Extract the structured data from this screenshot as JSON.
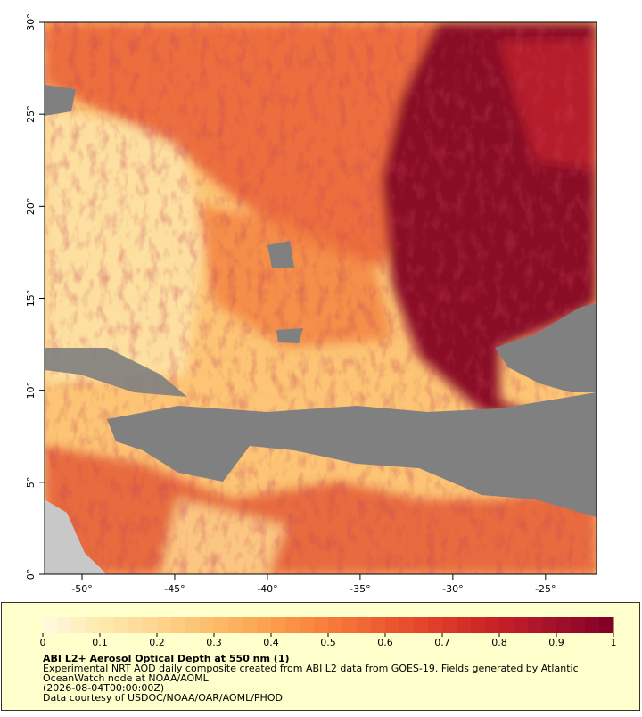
{
  "map": {
    "xlim": [
      -52.02,
      -22.25
    ],
    "ylim": [
      0,
      30
    ],
    "xticks": [
      {
        "value": -50,
        "label": "-50°"
      },
      {
        "value": -45,
        "label": "-45°"
      },
      {
        "value": -40,
        "label": "-40°"
      },
      {
        "value": -35,
        "label": "-35°"
      },
      {
        "value": -30,
        "label": "-30°"
      },
      {
        "value": -25,
        "label": "-25°"
      }
    ],
    "yticks": [
      {
        "value": 0,
        "label": "0°"
      },
      {
        "value": 5,
        "label": "5°"
      },
      {
        "value": 10,
        "label": "10°"
      },
      {
        "value": 15,
        "label": "15°"
      },
      {
        "value": 20,
        "label": "20°"
      },
      {
        "value": 25,
        "label": "25°"
      },
      {
        "value": 30,
        "label": "30°"
      }
    ]
  },
  "colorbar": {
    "range": [
      0,
      1
    ],
    "ticks": [
      0,
      0.1,
      0.2,
      0.3,
      0.4,
      0.5,
      0.6,
      0.7,
      0.8,
      0.9,
      1
    ],
    "colors": [
      "#fffbe3",
      "#fde9ad",
      "#fdd690",
      "#fcbc69",
      "#fb9f4c",
      "#f77d3c",
      "#ee5a30",
      "#dd3a28",
      "#c61f27",
      "#a3102b",
      "#7d0025"
    ]
  },
  "legend": {
    "title": "ABI L2+ Aerosol Optical Depth at 550 nm (1)",
    "lines": [
      "Experimental NRT AOD daily composite created from ABI L2 data from GOES-19. Fields generated by Atlantic",
      "OceanWatch node at NOAA/AOML",
      "(2026-08-04T00:00:00Z)",
      "Data courtesy of USDOC/NOAA/OAR/AOML/PHOD"
    ]
  }
}
